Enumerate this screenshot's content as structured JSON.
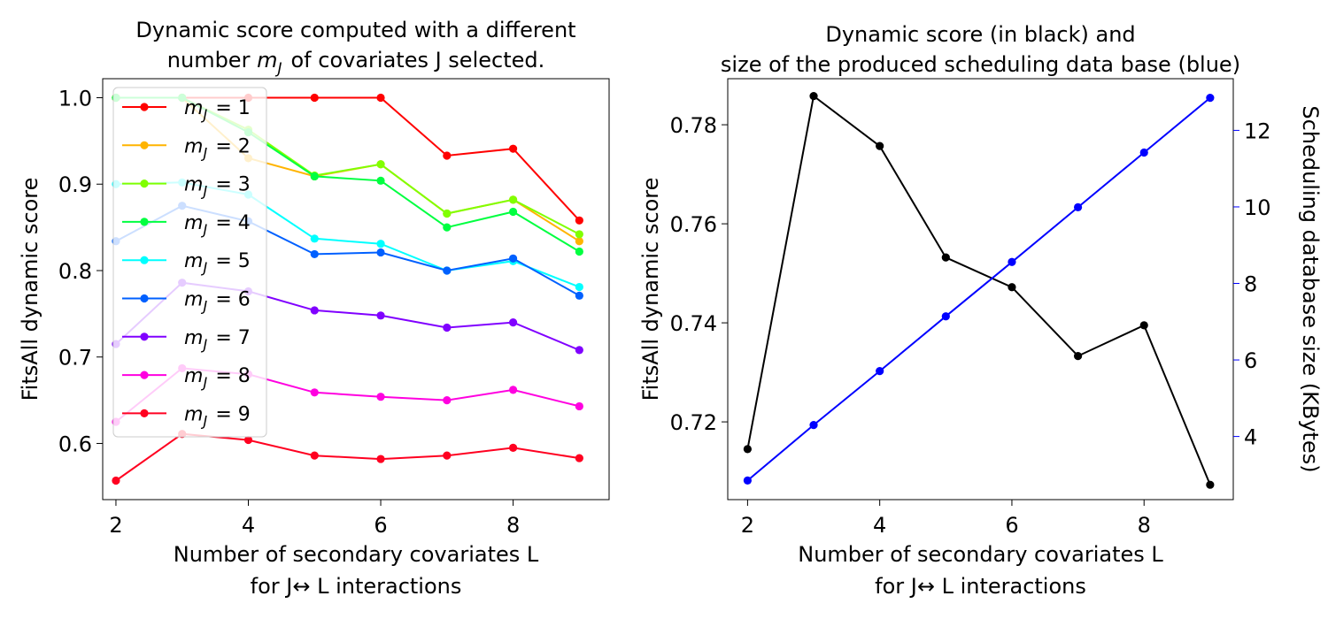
{
  "chart_data": [
    {
      "type": "line",
      "title": "Dynamic score computed with a different\nnumber $m_J$ of covariates J selected.",
      "title_lines": [
        "Dynamic score computed with a different",
        "number m_J of covariates J selected."
      ],
      "xlabel_lines": [
        "Number of secondary covariates L",
        "for J↔ L  interactions"
      ],
      "ylabel": "FitsAll dynamic score",
      "xlim": [
        1.8,
        9.45
      ],
      "ylim": [
        0.535,
        1.022
      ],
      "xticks": [
        2,
        4,
        6,
        8
      ],
      "xtick_labels": [
        "2",
        "4",
        "6",
        "8"
      ],
      "yticks": [
        0.6,
        0.7,
        0.8,
        0.9,
        1.0
      ],
      "ytick_labels": [
        "0.6",
        "0.7",
        "0.8",
        "0.9",
        "1.0"
      ],
      "grid": false,
      "legend_position": "upper-left",
      "x": [
        2,
        3,
        4,
        5,
        6,
        7,
        8,
        9
      ],
      "series": [
        {
          "name": "m_J = 1",
          "color": "#ff0000",
          "values": [
            1.0,
            1.0,
            1.0,
            1.0,
            1.0,
            0.933,
            0.941,
            0.858
          ]
        },
        {
          "name": "m_J = 2",
          "color": "#ffb400",
          "values": [
            1.0,
            1.0,
            0.93,
            0.909,
            0.923,
            0.866,
            0.882,
            0.834
          ]
        },
        {
          "name": "m_J = 3",
          "color": "#80ff00",
          "values": [
            1.0,
            1.0,
            0.963,
            0.91,
            0.923,
            0.866,
            0.882,
            0.842
          ]
        },
        {
          "name": "m_J = 4",
          "color": "#00ff40",
          "values": [
            1.0,
            1.0,
            0.96,
            0.909,
            0.904,
            0.85,
            0.868,
            0.822
          ]
        },
        {
          "name": "m_J = 5",
          "color": "#00ffff",
          "values": [
            0.9,
            0.902,
            0.888,
            0.837,
            0.831,
            0.8,
            0.811,
            0.781
          ]
        },
        {
          "name": "m_J = 6",
          "color": "#0060ff",
          "values": [
            0.834,
            0.875,
            0.857,
            0.819,
            0.821,
            0.8,
            0.814,
            0.771
          ]
        },
        {
          "name": "m_J = 7",
          "color": "#8000ff",
          "values": [
            0.715,
            0.786,
            0.776,
            0.754,
            0.748,
            0.734,
            0.74,
            0.708
          ]
        },
        {
          "name": "m_J = 8",
          "color": "#ff00e0",
          "values": [
            0.625,
            0.687,
            0.68,
            0.659,
            0.654,
            0.65,
            0.662,
            0.643
          ]
        },
        {
          "name": "m_J = 9",
          "color": "#ff0020",
          "values": [
            0.557,
            0.611,
            0.604,
            0.586,
            0.582,
            0.586,
            0.595,
            0.583
          ]
        }
      ]
    },
    {
      "type": "line",
      "title": "Dynamic score  (in black) and\nsize of the produced scheduling data base (blue)",
      "title_lines": [
        "Dynamic score  (in black) and",
        "size of the produced scheduling data base (blue)"
      ],
      "xlabel_lines": [
        "Number of secondary covariates L",
        "for J↔ L  interactions"
      ],
      "ylabel": "FitsAll dynamic score",
      "ylabel_right": "Scheduling database size (KBytes)",
      "xlim": [
        1.7,
        9.35
      ],
      "ylim": [
        0.7043,
        0.7893
      ],
      "ylim_right": [
        2.35,
        13.35
      ],
      "xticks": [
        2,
        4,
        6,
        8
      ],
      "xtick_labels": [
        "2",
        "4",
        "6",
        "8"
      ],
      "yticks": [
        0.72,
        0.74,
        0.76,
        0.78
      ],
      "ytick_labels": [
        "0.72",
        "0.74",
        "0.76",
        "0.78"
      ],
      "yticks_right": [
        4,
        6,
        8,
        10,
        12
      ],
      "ytick_labels_right": [
        "4",
        "6",
        "8",
        "10",
        "12"
      ],
      "grid": false,
      "x": [
        2,
        3,
        4,
        5,
        6,
        7,
        8,
        9
      ],
      "series": [
        {
          "name": "Dynamic score",
          "axis": "left",
          "color": "#000000",
          "values": [
            0.7145,
            0.7858,
            0.7757,
            0.7532,
            0.7472,
            0.7333,
            0.7395,
            0.7073
          ]
        },
        {
          "name": "Scheduling database size",
          "axis": "right",
          "color": "#0000ff",
          "values": [
            2.85,
            4.3,
            5.71,
            7.14,
            8.56,
            9.99,
            11.42,
            12.85
          ]
        }
      ]
    }
  ]
}
